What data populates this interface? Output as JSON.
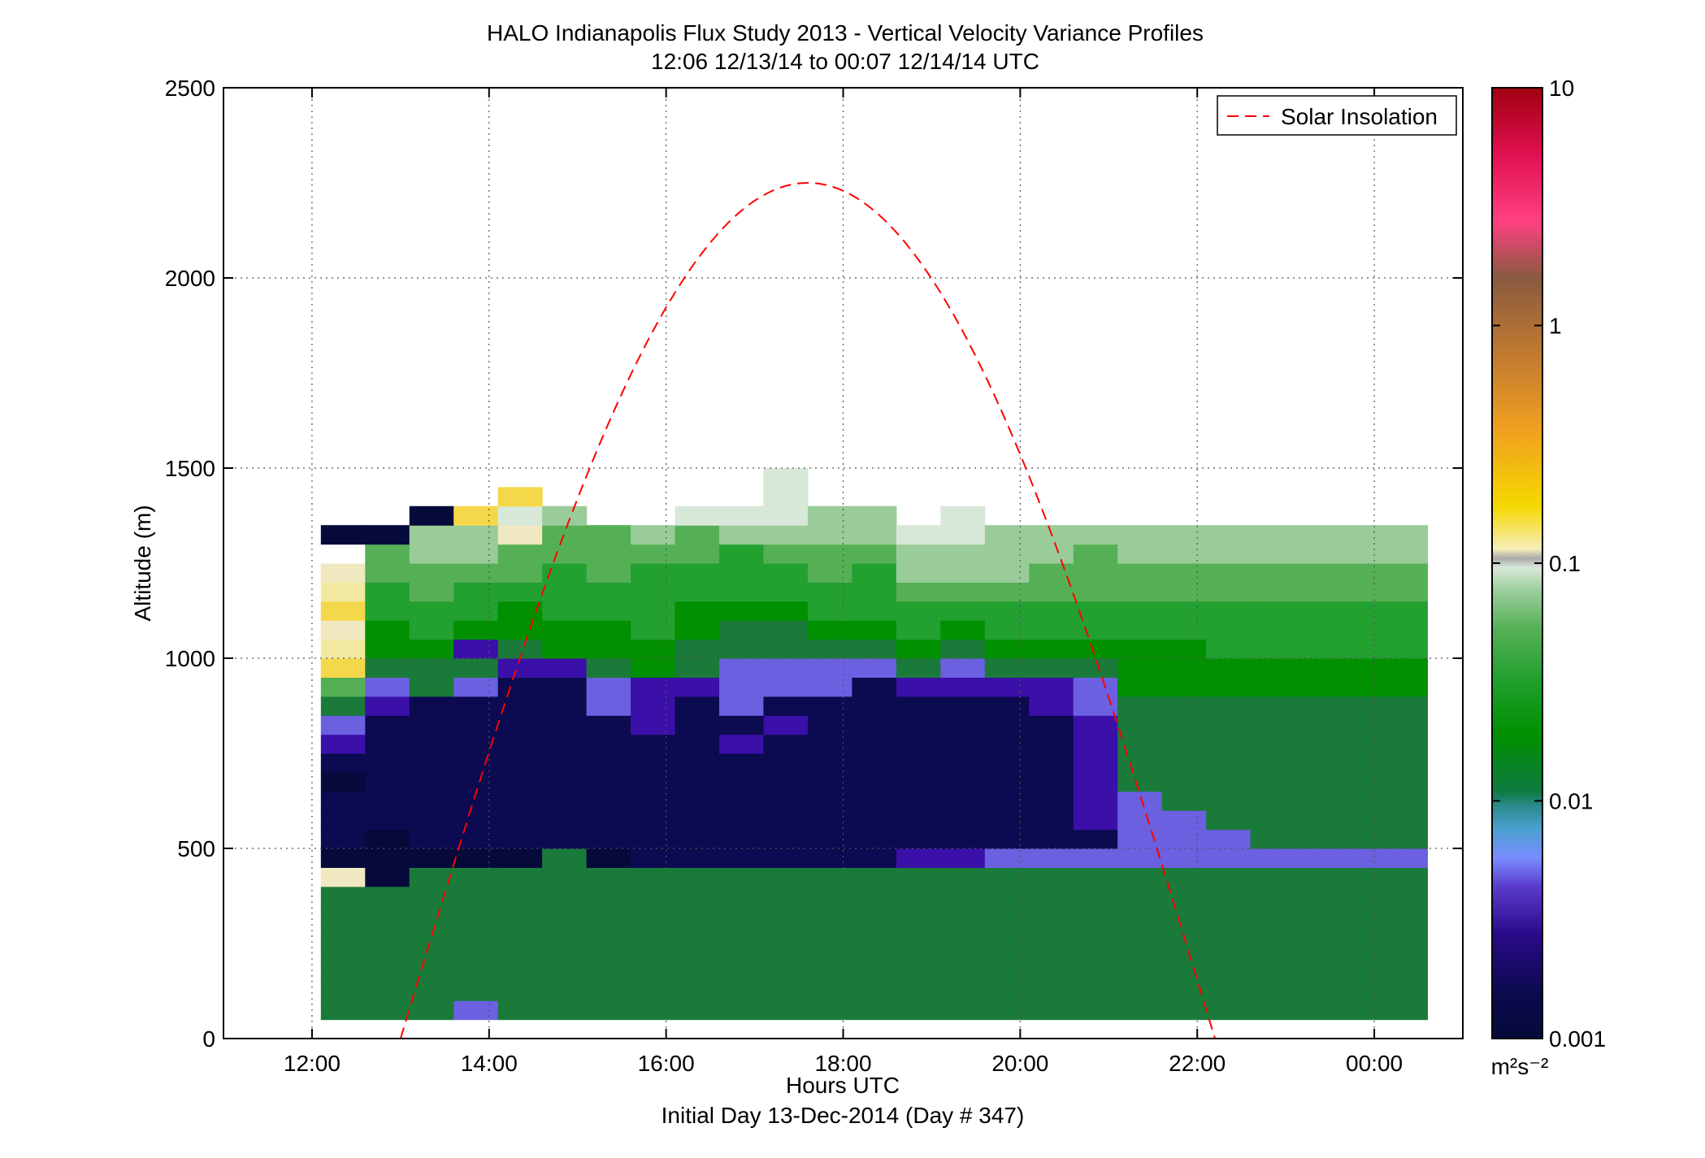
{
  "chart_data": {
    "type": "heatmap",
    "title": "HALO Indianapolis Flux Study 2013 - Vertical Velocity Variance Profiles",
    "subtitle": "12:06 12/13/14 to 00:07 12/14/14  UTC",
    "xlabel": "Hours UTC",
    "xlabel2": "Initial Day 13-Dec-2014 (Day # 347)",
    "ylabel": "Altitude (m)",
    "xlim": [
      11,
      25
    ],
    "ylim": [
      0,
      2500
    ],
    "x_ticks": [
      12,
      14,
      16,
      18,
      20,
      22,
      24
    ],
    "x_tick_labels": [
      "12:00",
      "14:00",
      "16:00",
      "18:00",
      "20:00",
      "22:00",
      "00:00"
    ],
    "y_ticks": [
      0,
      500,
      1000,
      1500,
      2000,
      2500
    ],
    "y_tick_labels": [
      "0",
      "500",
      "1000",
      "1500",
      "2000",
      "2500"
    ],
    "grid": true,
    "legend": {
      "position": "top-right",
      "entries": [
        {
          "label": "Solar Insolation",
          "color": "#ff0000",
          "style": "dashed"
        }
      ]
    },
    "colorbar": {
      "scale": "log",
      "range": [
        0.001,
        10
      ],
      "ticks": [
        0.001,
        0.01,
        0.1,
        1,
        10
      ],
      "tick_labels": [
        "0.001",
        "0.01",
        "0.1",
        "1",
        "10"
      ],
      "units": "m²s⁻²"
    },
    "cell_size": {
      "dt_hours": 0.5,
      "dz_m": 50
    },
    "cell_x_start_hours": 12.1,
    "cell_y_start_m": 50,
    "columns": [
      {
        "t": 12.1,
        "levels": "4444444d0111012347cbdcbde0"
      },
      {
        "t": 12.6,
        "levels": "44444440001111112345566770"
      },
      {
        "t": 13.1,
        "levels": "444444440111111114456677880"
      },
      {
        "t": 13.6,
        "levels": "34444444011111111342566788c"
      },
      {
        "t": 14.1,
        "levels": "4444444401111111112455677d9c"
      },
      {
        "t": 14.6,
        "levels": "444444444111111111255666778"
      },
      {
        "t": 15.1,
        "levels": "44444444011111113345566777"
      },
      {
        "t": 15.6,
        "levels": "44444444111111122255666678"
      },
      {
        "t": 16.1,
        "levels": "444444441111111112445566779"
      },
      {
        "t": 16.6,
        "levels": "444444441111112133344566689"
      },
      {
        "t": 17.1,
        "levels": "44444444111111121334456678999"
      },
      {
        "t": 17.6,
        "levels": "444444441111111113345667788"
      },
      {
        "t": 18.1,
        "levels": "444444441111111111345666788"
      },
      {
        "t": 18.6,
        "levels": "44444444211111111245667889"
      },
      {
        "t": 19.1,
        "levels": "444444442111111112345678899"
      },
      {
        "t": 19.6,
        "levels": "44444444311111111245667888"
      },
      {
        "t": 20.1,
        "levels": "44444444311111112245667788"
      },
      {
        "t": 20.6,
        "levels": "44444444312222223345667778"
      },
      {
        "t": 21.1,
        "levels": "44444444333344444555667788"
      },
      {
        "t": 21.6,
        "levels": "44444444333444444555667788"
      },
      {
        "t": 22.1,
        "levels": "44444444334444444556667788"
      },
      {
        "t": 22.6,
        "levels": "44444444344444444556667788"
      },
      {
        "t": 23.1,
        "levels": "44444444344444444556667788"
      },
      {
        "t": 23.6,
        "levels": "44444444344444444556667788"
      },
      {
        "t": 24.1,
        "levels": "44444444344444444556667788"
      }
    ],
    "solar_insolation_curve": {
      "peak_hour": 17.6,
      "peak_altitude_m": 2250,
      "zero_crossings_hours": [
        13.0,
        22.2
      ]
    }
  }
}
